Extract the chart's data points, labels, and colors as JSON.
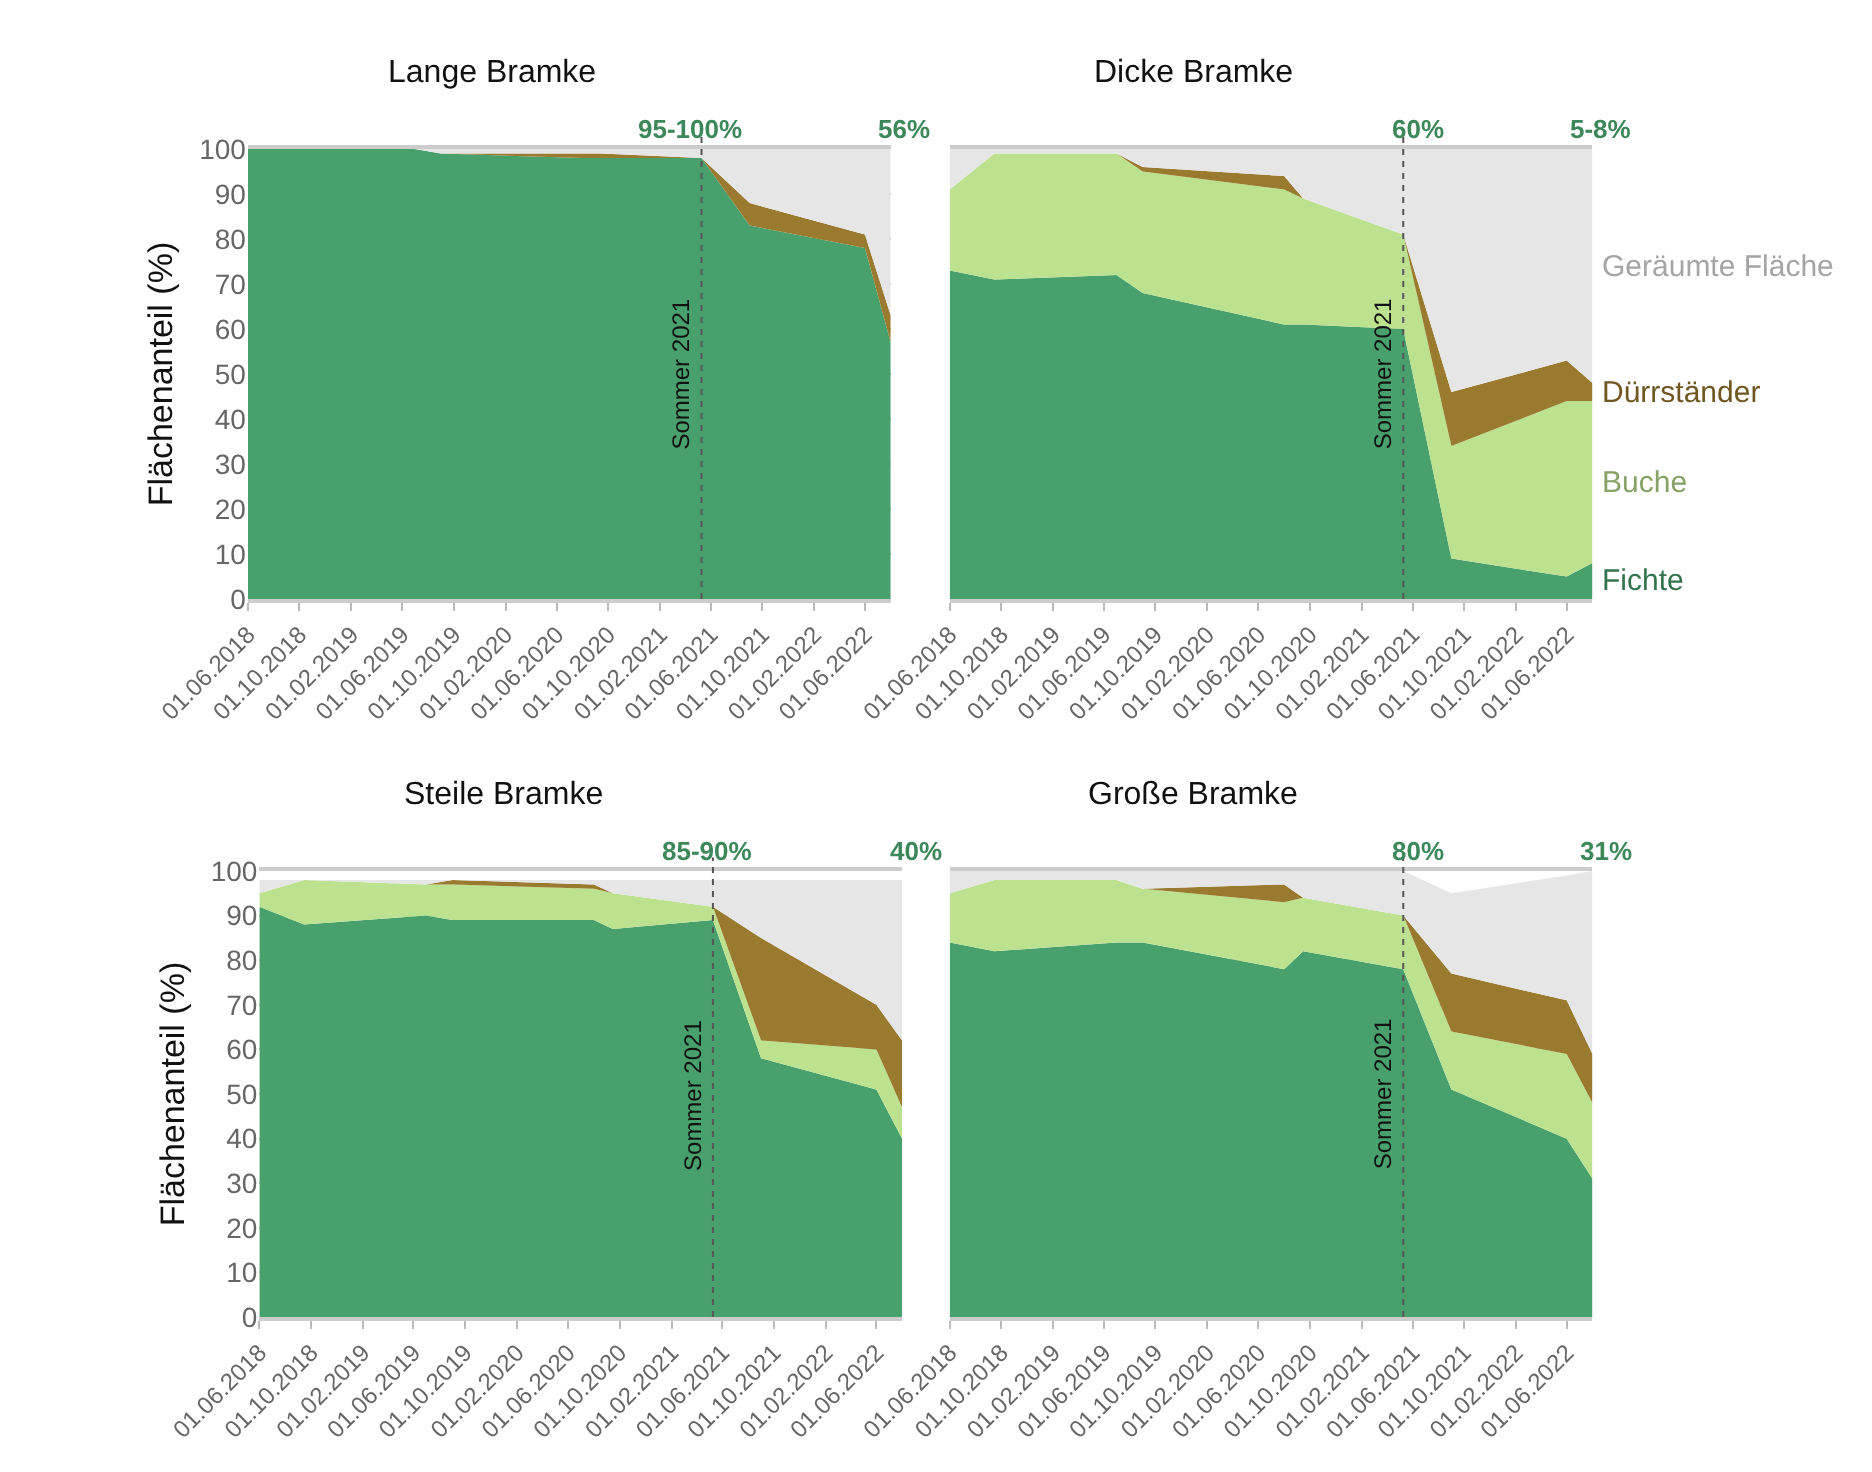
{
  "chart_data": [
    {
      "type": "area",
      "stacked": true,
      "title": "Lange Bramke",
      "ylabel": "Flächenanteil (%)",
      "x": [
        "2018-06-01",
        "2018-09-15",
        "2019-07-01",
        "2019-09-01",
        "2020-08-01",
        "2020-09-15",
        "2021-05-10",
        "2021-09-01",
        "2022-06-01",
        "2022-08-01"
      ],
      "series": [
        {
          "color": "#48a06c",
          "values": [
            100,
            100,
            100,
            99,
            98,
            98,
            98,
            83,
            78,
            57
          ]
        },
        {
          "color": "#9a7a2e",
          "values": [
            0,
            0,
            0,
            0,
            1,
            1,
            0,
            5,
            3,
            6
          ]
        },
        {
          "color": "#e6e6e6",
          "values": [
            0,
            0,
            0,
            1,
            1,
            1,
            2,
            12,
            19,
            37
          ]
        }
      ],
      "xlim": [
        "2018-06-01",
        "2022-08-01"
      ],
      "xticks": [
        {
          "value": "2018-06-01",
          "label": "01.06.2018"
        },
        {
          "value": "2018-10-01",
          "label": "01.10.2018"
        },
        {
          "value": "2019-02-01",
          "label": "01.02.2019"
        },
        {
          "value": "2019-06-01",
          "label": "01.06.2019"
        },
        {
          "value": "2019-10-01",
          "label": "01.10.2019"
        },
        {
          "value": "2020-02-01",
          "label": "01.02.2020"
        },
        {
          "value": "2020-06-01",
          "label": "01.06.2020"
        },
        {
          "value": "2020-10-01",
          "label": "01.10.2020"
        },
        {
          "value": "2021-02-01",
          "label": "01.02.2021"
        },
        {
          "value": "2021-06-01",
          "label": "01.06.2021"
        },
        {
          "value": "2021-10-01",
          "label": "01.10.2021"
        },
        {
          "value": "2022-02-01",
          "label": "01.02.2022"
        },
        {
          "value": "2022-06-01",
          "label": "01.06.2022"
        }
      ],
      "ylim": [
        0,
        100
      ],
      "yticks": [
        0,
        10,
        20,
        30,
        40,
        50,
        60,
        70,
        80,
        90,
        100
      ],
      "grid": "y",
      "ref_lines": [
        {
          "axis": "x",
          "value": "2021-05-10",
          "label": "Sommer 2021",
          "line_style": "dotted",
          "color": "#555555"
        }
      ],
      "annotations": [
        {
          "text": "95-100%",
          "x": "2021-05-10",
          "y": 100
        },
        {
          "text": "56%",
          "x": "2022-08-01",
          "y": 100
        }
      ]
    },
    {
      "type": "area",
      "stacked": true,
      "title": "Dicke Bramke",
      "x": [
        "2018-06-01",
        "2018-09-15",
        "2019-07-01",
        "2019-09-01",
        "2020-08-01",
        "2020-09-15",
        "2021-05-10",
        "2021-09-01",
        "2022-06-01",
        "2022-08-01"
      ],
      "series": [
        {
          "name": "Fichte",
          "color": "#48a06c",
          "values": [
            73,
            71,
            72,
            68,
            61,
            61,
            60,
            9,
            5,
            8
          ]
        },
        {
          "name": "Buche",
          "color": "#bce28f",
          "values": [
            18,
            28,
            27,
            27,
            30,
            28,
            21,
            25,
            39,
            36
          ]
        },
        {
          "name": "Dürrständer",
          "color": "#9a7a2e",
          "values": [
            0,
            0,
            0,
            1,
            3,
            0,
            0,
            12,
            9,
            4
          ]
        },
        {
          "name": "Geräumte Fläche",
          "color": "#e6e6e6",
          "values": [
            9,
            1,
            1,
            4,
            6,
            11,
            19,
            54,
            47,
            52
          ]
        }
      ],
      "legend": "right",
      "xlim": [
        "2018-06-01",
        "2022-08-01"
      ],
      "xticks": [
        {
          "value": "2018-06-01",
          "label": "01.06.2018"
        },
        {
          "value": "2018-10-01",
          "label": "01.10.2018"
        },
        {
          "value": "2019-02-01",
          "label": "01.02.2019"
        },
        {
          "value": "2019-06-01",
          "label": "01.06.2019"
        },
        {
          "value": "2019-10-01",
          "label": "01.10.2019"
        },
        {
          "value": "2020-02-01",
          "label": "01.02.2020"
        },
        {
          "value": "2020-06-01",
          "label": "01.06.2020"
        },
        {
          "value": "2020-10-01",
          "label": "01.10.2020"
        },
        {
          "value": "2021-02-01",
          "label": "01.02.2021"
        },
        {
          "value": "2021-06-01",
          "label": "01.06.2021"
        },
        {
          "value": "2021-10-01",
          "label": "01.10.2021"
        },
        {
          "value": "2022-02-01",
          "label": "01.02.2022"
        },
        {
          "value": "2022-06-01",
          "label": "01.06.2022"
        }
      ],
      "ylim": [
        0,
        100
      ],
      "yticks": [
        0,
        10,
        20,
        30,
        40,
        50,
        60,
        70,
        80,
        90,
        100
      ],
      "grid": "y",
      "tick_labels": "x",
      "ref_lines": [
        {
          "axis": "x",
          "value": "2021-05-10",
          "label": "Sommer 2021",
          "line_style": "dotted",
          "color": "#555555"
        }
      ],
      "annotations": [
        {
          "text": "60%",
          "x": "2021-05-10",
          "y": 100
        },
        {
          "text": "5-8%",
          "x": "2022-08-01",
          "y": 100
        }
      ]
    },
    {
      "type": "area",
      "stacked": true,
      "title": "Steile Bramke",
      "ylabel": "Flächenanteil (%)",
      "x": [
        "2018-06-01",
        "2018-09-15",
        "2019-07-01",
        "2019-09-01",
        "2020-08-01",
        "2020-09-15",
        "2021-05-10",
        "2021-09-01",
        "2022-06-01",
        "2022-08-01"
      ],
      "series": [
        {
          "color": "#48a06c",
          "values": [
            92,
            88,
            90,
            89,
            89,
            87,
            89,
            58,
            51,
            40
          ]
        },
        {
          "color": "#bce28f",
          "values": [
            3,
            10,
            7,
            8,
            7,
            8,
            3,
            4,
            9,
            7
          ]
        },
        {
          "color": "#9a7a2e",
          "values": [
            0,
            0,
            0,
            1,
            1,
            0,
            0,
            23,
            10,
            15
          ]
        },
        {
          "color": "#e6e6e6",
          "values": [
            3,
            0,
            1,
            0,
            1,
            3,
            6,
            13,
            28,
            36
          ]
        }
      ],
      "xlim": [
        "2018-06-01",
        "2022-08-01"
      ],
      "xticks": [
        {
          "value": "2018-06-01",
          "label": "01.06.2018"
        },
        {
          "value": "2018-10-01",
          "label": "01.10.2018"
        },
        {
          "value": "2019-02-01",
          "label": "01.02.2019"
        },
        {
          "value": "2019-06-01",
          "label": "01.06.2019"
        },
        {
          "value": "2019-10-01",
          "label": "01.10.2019"
        },
        {
          "value": "2020-02-01",
          "label": "01.02.2020"
        },
        {
          "value": "2020-06-01",
          "label": "01.06.2020"
        },
        {
          "value": "2020-10-01",
          "label": "01.10.2020"
        },
        {
          "value": "2021-02-01",
          "label": "01.02.2021"
        },
        {
          "value": "2021-06-01",
          "label": "01.06.2021"
        },
        {
          "value": "2021-10-01",
          "label": "01.10.2021"
        },
        {
          "value": "2022-02-01",
          "label": "01.02.2022"
        },
        {
          "value": "2022-06-01",
          "label": "01.06.2022"
        }
      ],
      "ylim": [
        0,
        100
      ],
      "yticks": [
        0,
        10,
        20,
        30,
        40,
        50,
        60,
        70,
        80,
        90,
        100
      ],
      "grid": "y",
      "ref_lines": [
        {
          "axis": "x",
          "value": "2021-05-10",
          "label": "Sommer 2021",
          "line_style": "dotted",
          "color": "#555555"
        }
      ],
      "annotations": [
        {
          "text": "85-90%",
          "x": "2021-05-10",
          "y": 100
        },
        {
          "text": "40%",
          "x": "2022-08-01",
          "y": 100
        }
      ]
    },
    {
      "type": "area",
      "stacked": true,
      "title": "Große Bramke",
      "x": [
        "2018-06-01",
        "2018-09-15",
        "2019-07-01",
        "2019-09-01",
        "2020-08-01",
        "2020-09-15",
        "2021-05-10",
        "2021-09-01",
        "2022-06-01",
        "2022-08-01"
      ],
      "series": [
        {
          "color": "#48a06c",
          "values": [
            84,
            82,
            84,
            84,
            78,
            82,
            78,
            51,
            40,
            31
          ]
        },
        {
          "color": "#bce28f",
          "values": [
            11,
            16,
            14,
            12,
            15,
            12,
            12,
            13,
            19,
            17
          ]
        },
        {
          "color": "#9a7a2e",
          "values": [
            0,
            0,
            0,
            0,
            4,
            0,
            0,
            13,
            12,
            11
          ]
        },
        {
          "color": "#e6e6e6",
          "values": [
            5,
            2,
            2,
            4,
            3,
            6,
            10,
            18,
            28,
            41
          ]
        }
      ],
      "xlim": [
        "2018-06-01",
        "2022-08-01"
      ],
      "xticks": [
        {
          "value": "2018-06-01",
          "label": "01.06.2018"
        },
        {
          "value": "2018-10-01",
          "label": "01.10.2018"
        },
        {
          "value": "2019-02-01",
          "label": "01.02.2019"
        },
        {
          "value": "2019-06-01",
          "label": "01.06.2019"
        },
        {
          "value": "2019-10-01",
          "label": "01.10.2019"
        },
        {
          "value": "2020-02-01",
          "label": "01.02.2020"
        },
        {
          "value": "2020-06-01",
          "label": "01.06.2020"
        },
        {
          "value": "2020-10-01",
          "label": "01.10.2020"
        },
        {
          "value": "2021-02-01",
          "label": "01.02.2021"
        },
        {
          "value": "2021-06-01",
          "label": "01.06.2021"
        },
        {
          "value": "2021-10-01",
          "label": "01.10.2021"
        },
        {
          "value": "2022-02-01",
          "label": "01.02.2022"
        },
        {
          "value": "2022-06-01",
          "label": "01.06.2022"
        }
      ],
      "ylim": [
        0,
        100
      ],
      "yticks": [
        0,
        10,
        20,
        30,
        40,
        50,
        60,
        70,
        80,
        90,
        100
      ],
      "grid": "y",
      "tick_labels": "x",
      "ref_lines": [
        {
          "axis": "x",
          "value": "2021-05-10",
          "label": "Sommer 2021",
          "line_style": "dotted",
          "color": "#555555"
        }
      ],
      "annotations": [
        {
          "text": "80%",
          "x": "2021-05-10",
          "y": 100
        },
        {
          "text": "31%",
          "x": "2022-08-01",
          "y": 100
        }
      ]
    }
  ]
}
